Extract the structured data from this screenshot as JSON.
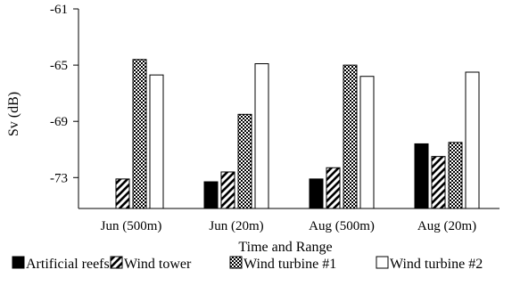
{
  "chart_data": {
    "type": "bar",
    "title": "",
    "xlabel": "Time and Range",
    "ylabel": "Sv (dB)",
    "ylim": [
      -75.2,
      -61
    ],
    "yticks": [
      -61,
      -65,
      -69,
      -73
    ],
    "y_tick_labels": [
      "-61",
      "-65",
      "-69",
      "-73"
    ],
    "grid": false,
    "legend_position": "bottom",
    "categories": [
      "Jun (500m)",
      "Jun (20m)",
      "Aug (500m)",
      "Aug (20m)"
    ],
    "series": [
      {
        "name": "Artificial reefs",
        "pattern": "solid-black",
        "values": [
          null,
          -73.3,
          -73.1,
          -70.6
        ]
      },
      {
        "name": "Wind tower",
        "pattern": "diagonal-stripes",
        "values": [
          -73.1,
          -72.6,
          -72.3,
          -71.5
        ]
      },
      {
        "name": "Wind turbine #1",
        "pattern": "dotted",
        "values": [
          -64.6,
          -68.5,
          -65.0,
          -70.5
        ]
      },
      {
        "name": "Wind turbine #2",
        "pattern": "white",
        "values": [
          -65.7,
          -64.9,
          -65.8,
          -65.5
        ]
      }
    ]
  }
}
